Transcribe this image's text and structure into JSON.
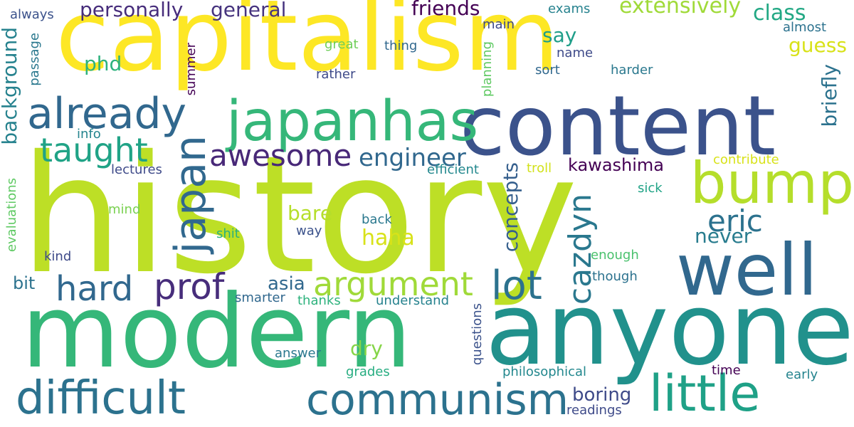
{
  "words": [
    {
      "id": "capitalism",
      "text": "capitalism",
      "color": "#fde725"
    },
    {
      "id": "history",
      "text": "history",
      "color": "#bddf26"
    },
    {
      "id": "content",
      "text": "content",
      "color": "#3b528b"
    },
    {
      "id": "modern",
      "text": "modern",
      "color": "#35b779"
    },
    {
      "id": "anyone",
      "text": "anyone",
      "color": "#21918c"
    },
    {
      "id": "japanhas",
      "text": "japanhas",
      "color": "#35b779"
    },
    {
      "id": "well",
      "text": "well",
      "color": "#31688e"
    },
    {
      "id": "bump",
      "text": "bump",
      "color": "#b5de2b"
    },
    {
      "id": "little",
      "text": "little",
      "color": "#1fa187"
    },
    {
      "id": "already",
      "text": "already",
      "color": "#31688e"
    },
    {
      "id": "difficult",
      "text": "difficult",
      "color": "#2c728e"
    },
    {
      "id": "communism",
      "text": "communism",
      "color": "#2c728e"
    },
    {
      "id": "hard",
      "text": "hard",
      "color": "#31688e"
    },
    {
      "id": "prof",
      "text": "prof",
      "color": "#472d7b"
    },
    {
      "id": "argument",
      "text": "argument",
      "color": "#a0da39"
    },
    {
      "id": "lot",
      "text": "lot",
      "color": "#2c728e"
    },
    {
      "id": "japan",
      "text": "japan",
      "color": "#31688e"
    },
    {
      "id": "taught",
      "text": "taught",
      "color": "#20a386"
    },
    {
      "id": "awesome",
      "text": "awesome",
      "color": "#482878"
    },
    {
      "id": "eric",
      "text": "eric",
      "color": "#2c728e"
    },
    {
      "id": "cazdyn",
      "text": "cazdyn",
      "color": "#2a788e"
    },
    {
      "id": "engineer",
      "text": "engineer",
      "color": "#31688e"
    },
    {
      "id": "personally",
      "text": "personally",
      "color": "#472d7b"
    },
    {
      "id": "general",
      "text": "general",
      "color": "#46337e"
    },
    {
      "id": "friends",
      "text": "friends",
      "color": "#440154"
    },
    {
      "id": "extensively",
      "text": "extensively",
      "color": "#a0da39"
    },
    {
      "id": "class",
      "text": "class",
      "color": "#22a884"
    },
    {
      "id": "guess",
      "text": "guess",
      "color": "#d8e219"
    },
    {
      "id": "say",
      "text": "say",
      "color": "#1f9e89"
    },
    {
      "id": "phd",
      "text": "phd",
      "color": "#2db27d"
    },
    {
      "id": "background",
      "text": "background",
      "color": "#26828e"
    },
    {
      "id": "briefly",
      "text": "briefly",
      "color": "#2c728e"
    },
    {
      "id": "kawashima",
      "text": "kawashima",
      "color": "#440154"
    },
    {
      "id": "concepts",
      "text": "concepts",
      "color": "#355f8d"
    },
    {
      "id": "haha",
      "text": "haha",
      "color": "#d8e219"
    },
    {
      "id": "bare",
      "text": "bare",
      "color": "#b5de2b"
    },
    {
      "id": "never",
      "text": "never",
      "color": "#287c8e"
    },
    {
      "id": "asia",
      "text": "asia",
      "color": "#31688e"
    },
    {
      "id": "dry",
      "text": "dry",
      "color": "#86d549"
    },
    {
      "id": "boring",
      "text": "boring",
      "color": "#3e4a89"
    },
    {
      "id": "readings",
      "text": "readings",
      "color": "#3e4a89"
    },
    {
      "id": "philosophical",
      "text": "philosophical",
      "color": "#23888e"
    },
    {
      "id": "time",
      "text": "time",
      "color": "#440154"
    },
    {
      "id": "early",
      "text": "early",
      "color": "#25848e"
    },
    {
      "id": "grades",
      "text": "grades",
      "color": "#27ad81"
    },
    {
      "id": "answer",
      "text": "answer",
      "color": "#2a788e"
    },
    {
      "id": "questions",
      "text": "questions",
      "color": "#3b528b"
    },
    {
      "id": "understand",
      "text": "understand",
      "color": "#26828e"
    },
    {
      "id": "thanks",
      "text": "thanks",
      "color": "#2db27d"
    },
    {
      "id": "smarter",
      "text": "smarter",
      "color": "#31688e"
    },
    {
      "id": "bit",
      "text": "bit",
      "color": "#2c728e"
    },
    {
      "id": "kind",
      "text": "kind",
      "color": "#3e4a89"
    },
    {
      "id": "evaluations",
      "text": "evaluations",
      "color": "#5ec962"
    },
    {
      "id": "mind",
      "text": "mind",
      "color": "#7ad151"
    },
    {
      "id": "lectures",
      "text": "lectures",
      "color": "#3e4a89"
    },
    {
      "id": "info",
      "text": "info",
      "color": "#25848e"
    },
    {
      "id": "shit",
      "text": "shit",
      "color": "#2ab07f"
    },
    {
      "id": "way",
      "text": "way",
      "color": "#3b528b"
    },
    {
      "id": "back",
      "text": "back",
      "color": "#2a788e"
    },
    {
      "id": "efficient",
      "text": "efficient",
      "color": "#23888e"
    },
    {
      "id": "troll",
      "text": "troll",
      "color": "#d2e21b"
    },
    {
      "id": "sick",
      "text": "sick",
      "color": "#20a386"
    },
    {
      "id": "contribute",
      "text": "contribute",
      "color": "#d8e219"
    },
    {
      "id": "enough",
      "text": "enough",
      "color": "#4ac16d"
    },
    {
      "id": "though",
      "text": "though",
      "color": "#2c728e"
    },
    {
      "id": "passage",
      "text": "passage",
      "color": "#2a788e"
    },
    {
      "id": "always",
      "text": "always",
      "color": "#3b528b"
    },
    {
      "id": "summer",
      "text": "summer",
      "color": "#440154"
    },
    {
      "id": "great",
      "text": "great",
      "color": "#6ece58"
    },
    {
      "id": "thing",
      "text": "thing",
      "color": "#31688e"
    },
    {
      "id": "rather",
      "text": "rather",
      "color": "#3e4a89"
    },
    {
      "id": "main",
      "text": "main",
      "color": "#3e4a89"
    },
    {
      "id": "planning",
      "text": "planning",
      "color": "#5ec962"
    },
    {
      "id": "name",
      "text": "name",
      "color": "#3e4a89"
    },
    {
      "id": "sort",
      "text": "sort",
      "color": "#31688e"
    },
    {
      "id": "harder",
      "text": "harder",
      "color": "#2a788e"
    },
    {
      "id": "exams",
      "text": "exams",
      "color": "#26828e"
    },
    {
      "id": "almost",
      "text": "almost",
      "color": "#2c728e"
    }
  ]
}
